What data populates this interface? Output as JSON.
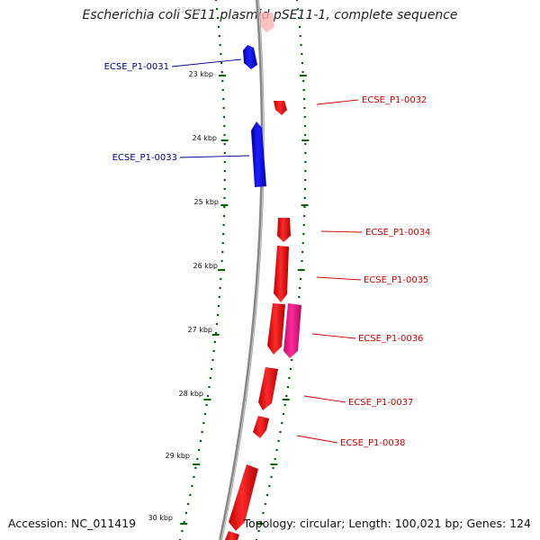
{
  "title": "Escherichia coli SE11 plasmid pSE11-1, complete sequence",
  "footer": {
    "accession": "Accession: NC_011419",
    "summary": "Topology: circular; Length: 100,021 bp; Genes: 124"
  },
  "colors": {
    "forward_gene": "#ff0000",
    "reverse_gene": "#0000ee",
    "other_gene": "#ff1493",
    "backbone": "#8a8a8a",
    "ticks": "#006400",
    "reverse_label": "#00008b",
    "forward_label": "#cc0000"
  },
  "tick_labels": [
    "23 kbp",
    "24 kbp",
    "25 kbp",
    "26 kbp",
    "27 kbp",
    "28 kbp",
    "29 kbp",
    "30 kbp"
  ],
  "genes": [
    {
      "label": "ECSE_P1-0031",
      "strand": "reverse"
    },
    {
      "label": "ECSE_P1-0032",
      "strand": "forward"
    },
    {
      "label": "ECSE_P1-0033",
      "strand": "reverse"
    },
    {
      "label": "ECSE_P1-0034",
      "strand": "forward"
    },
    {
      "label": "ECSE_P1-0035",
      "strand": "forward"
    },
    {
      "label": "ECSE_P1-0036",
      "strand": "other"
    },
    {
      "label": "ECSE_P1-0037",
      "strand": "forward"
    },
    {
      "label": "ECSE_P1-0038",
      "strand": "forward"
    }
  ]
}
